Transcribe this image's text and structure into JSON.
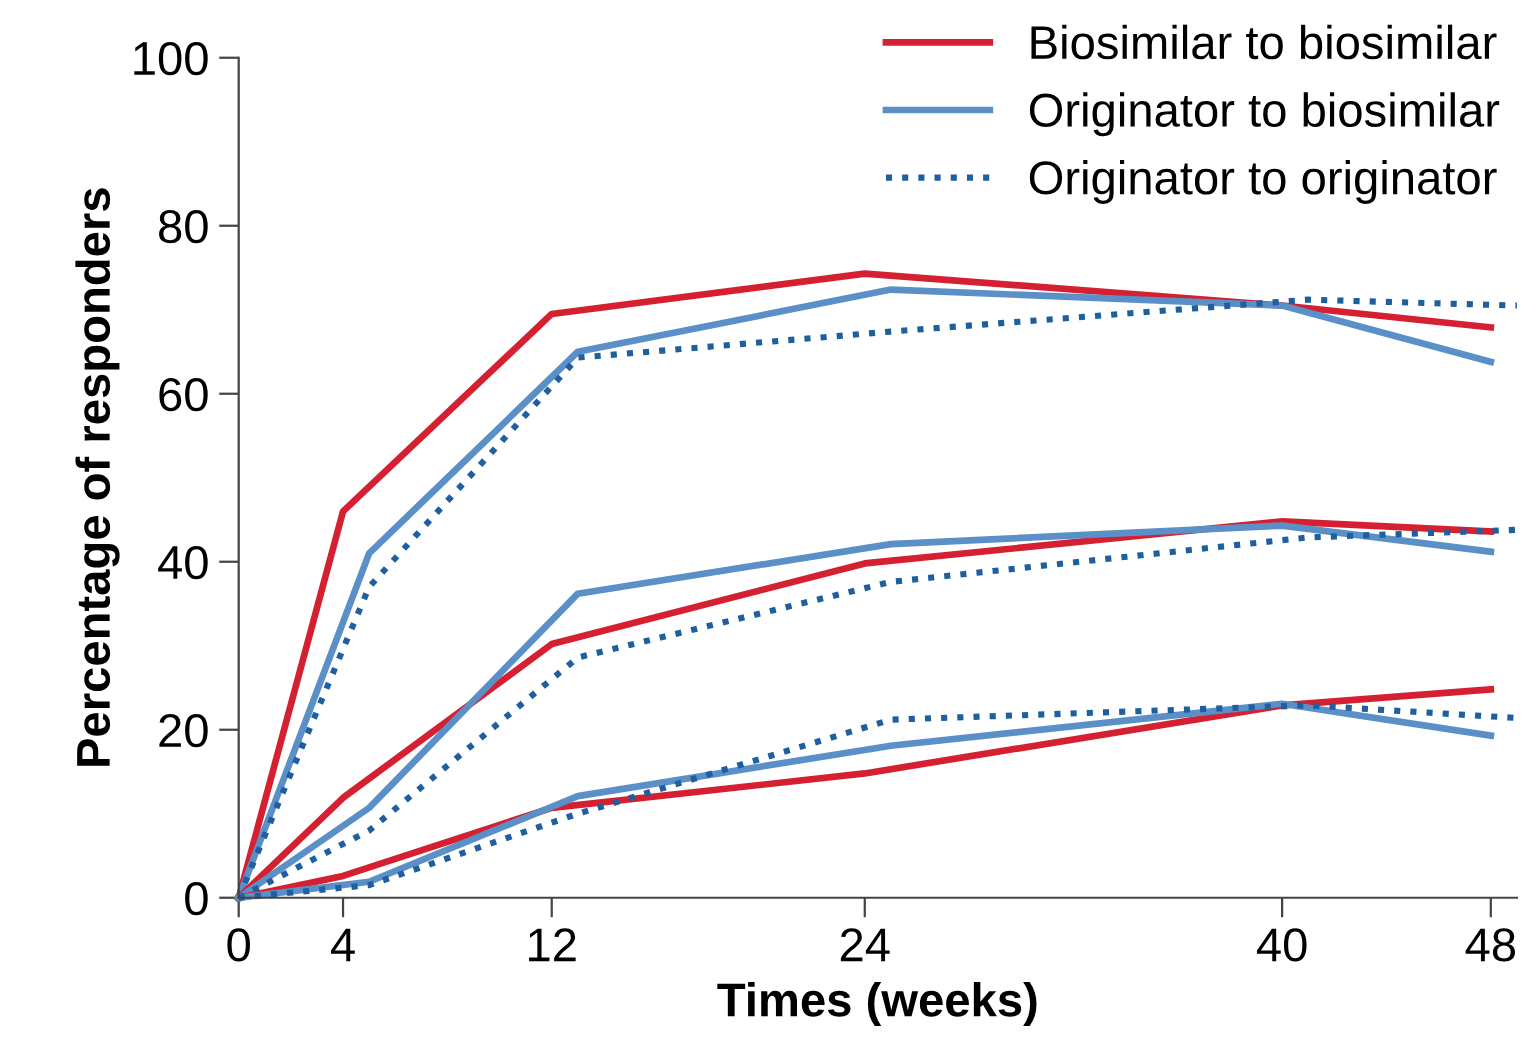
{
  "chart_data": {
    "type": "line",
    "xlabel": "Times (weeks)",
    "ylabel": "Percentage of responders",
    "xlim": [
      0,
      49
    ],
    "ylim": [
      0,
      100
    ],
    "xticks": [
      0,
      4,
      12,
      24,
      40,
      48
    ],
    "yticks": [
      0,
      20,
      40,
      60,
      80,
      100
    ],
    "grid": false,
    "legend": "top right",
    "marker": "none",
    "series": [
      {
        "name": "Biosimilar to biosimilar",
        "color": "#d42030",
        "line_style": "solid",
        "x": [
          0,
          4,
          12,
          24,
          40,
          48
        ],
        "values": [
          0,
          46,
          69.5,
          74.3,
          70.5,
          67.9
        ]
      },
      {
        "name": "Originator to biosimilar",
        "color": "#5b8fc7",
        "line_style": "solid",
        "x": [
          0,
          5,
          13,
          25,
          40,
          48
        ],
        "values": [
          0,
          41,
          65,
          72.4,
          70.5,
          63.8
        ]
      },
      {
        "name": "Originator to originator",
        "color": "#1f5fa0",
        "line_style": "dotted",
        "x": [
          0,
          5,
          13,
          25,
          41,
          49
        ],
        "values": [
          0,
          37,
          64.3,
          67.4,
          71.2,
          70.5
        ]
      },
      {
        "color": "#d42030",
        "line_style": "solid",
        "x": [
          0,
          4,
          12,
          24,
          40,
          48
        ],
        "values": [
          0,
          11.9,
          30.2,
          39.8,
          44.8,
          43.6
        ]
      },
      {
        "color": "#5b8fc7",
        "line_style": "solid",
        "x": [
          0,
          5,
          13,
          25,
          40,
          48
        ],
        "values": [
          0,
          10.7,
          36.2,
          42.1,
          44.3,
          41.2
        ]
      },
      {
        "color": "#1f5fa0",
        "line_style": "dotted",
        "x": [
          0,
          5,
          13,
          25,
          41,
          49
        ],
        "values": [
          0,
          8,
          28.6,
          37.6,
          42.9,
          43.8
        ]
      },
      {
        "color": "#d42030",
        "line_style": "solid",
        "x": [
          0,
          4,
          12,
          24,
          40,
          48
        ],
        "values": [
          0,
          2.6,
          10.7,
          14.8,
          22.9,
          24.8
        ]
      },
      {
        "color": "#5b8fc7",
        "line_style": "solid",
        "x": [
          0,
          5,
          13,
          25,
          40,
          48
        ],
        "values": [
          0,
          1.9,
          12.1,
          18.1,
          23.1,
          19.3
        ]
      },
      {
        "color": "#1f5fa0",
        "line_style": "dotted",
        "x": [
          0,
          5,
          13,
          25,
          41,
          49
        ],
        "values": [
          0,
          1.5,
          10,
          21.2,
          22.9,
          21.4
        ]
      }
    ]
  }
}
